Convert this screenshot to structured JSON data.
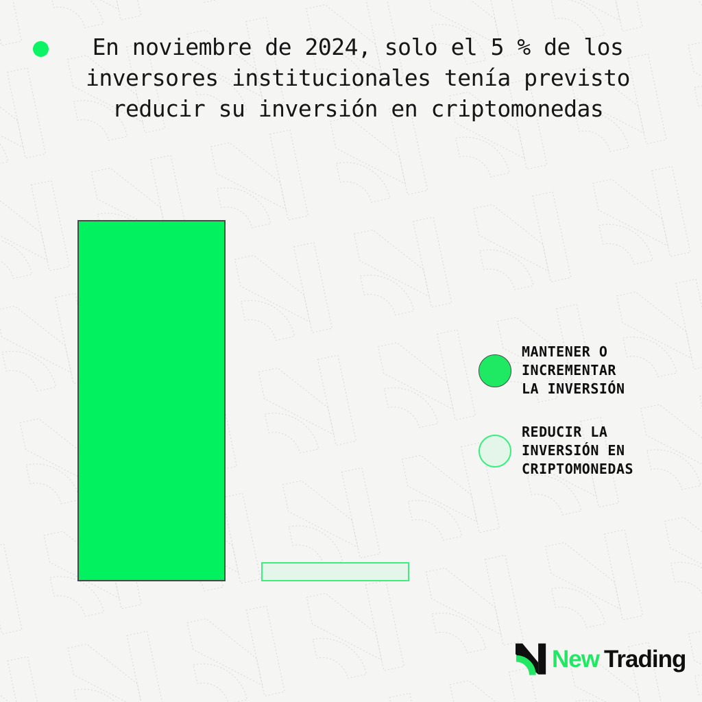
{
  "title": {
    "bullet_color": "#0cf463",
    "lines": [
      "En noviembre de 2024, solo el 5 % de los",
      "inversores institucionales tenía previsto",
      "reducir su inversión en criptomonedas"
    ],
    "full_text": "En noviembre de 2024, solo el 5 % de los inversores institucionales tenía previsto reducir su inversión en criptomonedas"
  },
  "chart_data": {
    "type": "bar",
    "title": "En noviembre de 2024, solo el 5 % de los inversores institucionales tenía previsto reducir su inversión en criptomonedas",
    "categories": [
      "Mantener o incrementar la inversión",
      "Reducir la inversión en criptomonedas"
    ],
    "values": [
      95,
      5
    ],
    "unit": "%",
    "ylim": [
      0,
      100
    ],
    "grid": false,
    "axes_visible": false,
    "data_labels_visible": false,
    "legend_position": "right",
    "bar_colors": [
      "#02f25f",
      "#e4f5ea"
    ],
    "bar_borders": [
      "#3e4e44",
      "#3bee7e"
    ]
  },
  "legend": {
    "items": [
      {
        "lines": [
          "MANTENER O",
          "INCREMENTAR",
          "LA INVERSIÓN"
        ],
        "label": "MANTENER O INCREMENTAR LA INVERSIÓN",
        "fill": "#1fe963",
        "border": "#3e4e44"
      },
      {
        "lines": [
          "REDUCIR LA",
          "INVERSIÓN EN",
          "CRIPTOMONEDAS"
        ],
        "label": "REDUCIR LA INVERSIÓN EN CRIPTOMONEDAS",
        "fill": "#e4f5ea",
        "border": "#3bee7e"
      }
    ]
  },
  "logo": {
    "first": "New",
    "second": "Trading",
    "green_color": "#22e765",
    "dark_color": "#0f0f0f"
  }
}
